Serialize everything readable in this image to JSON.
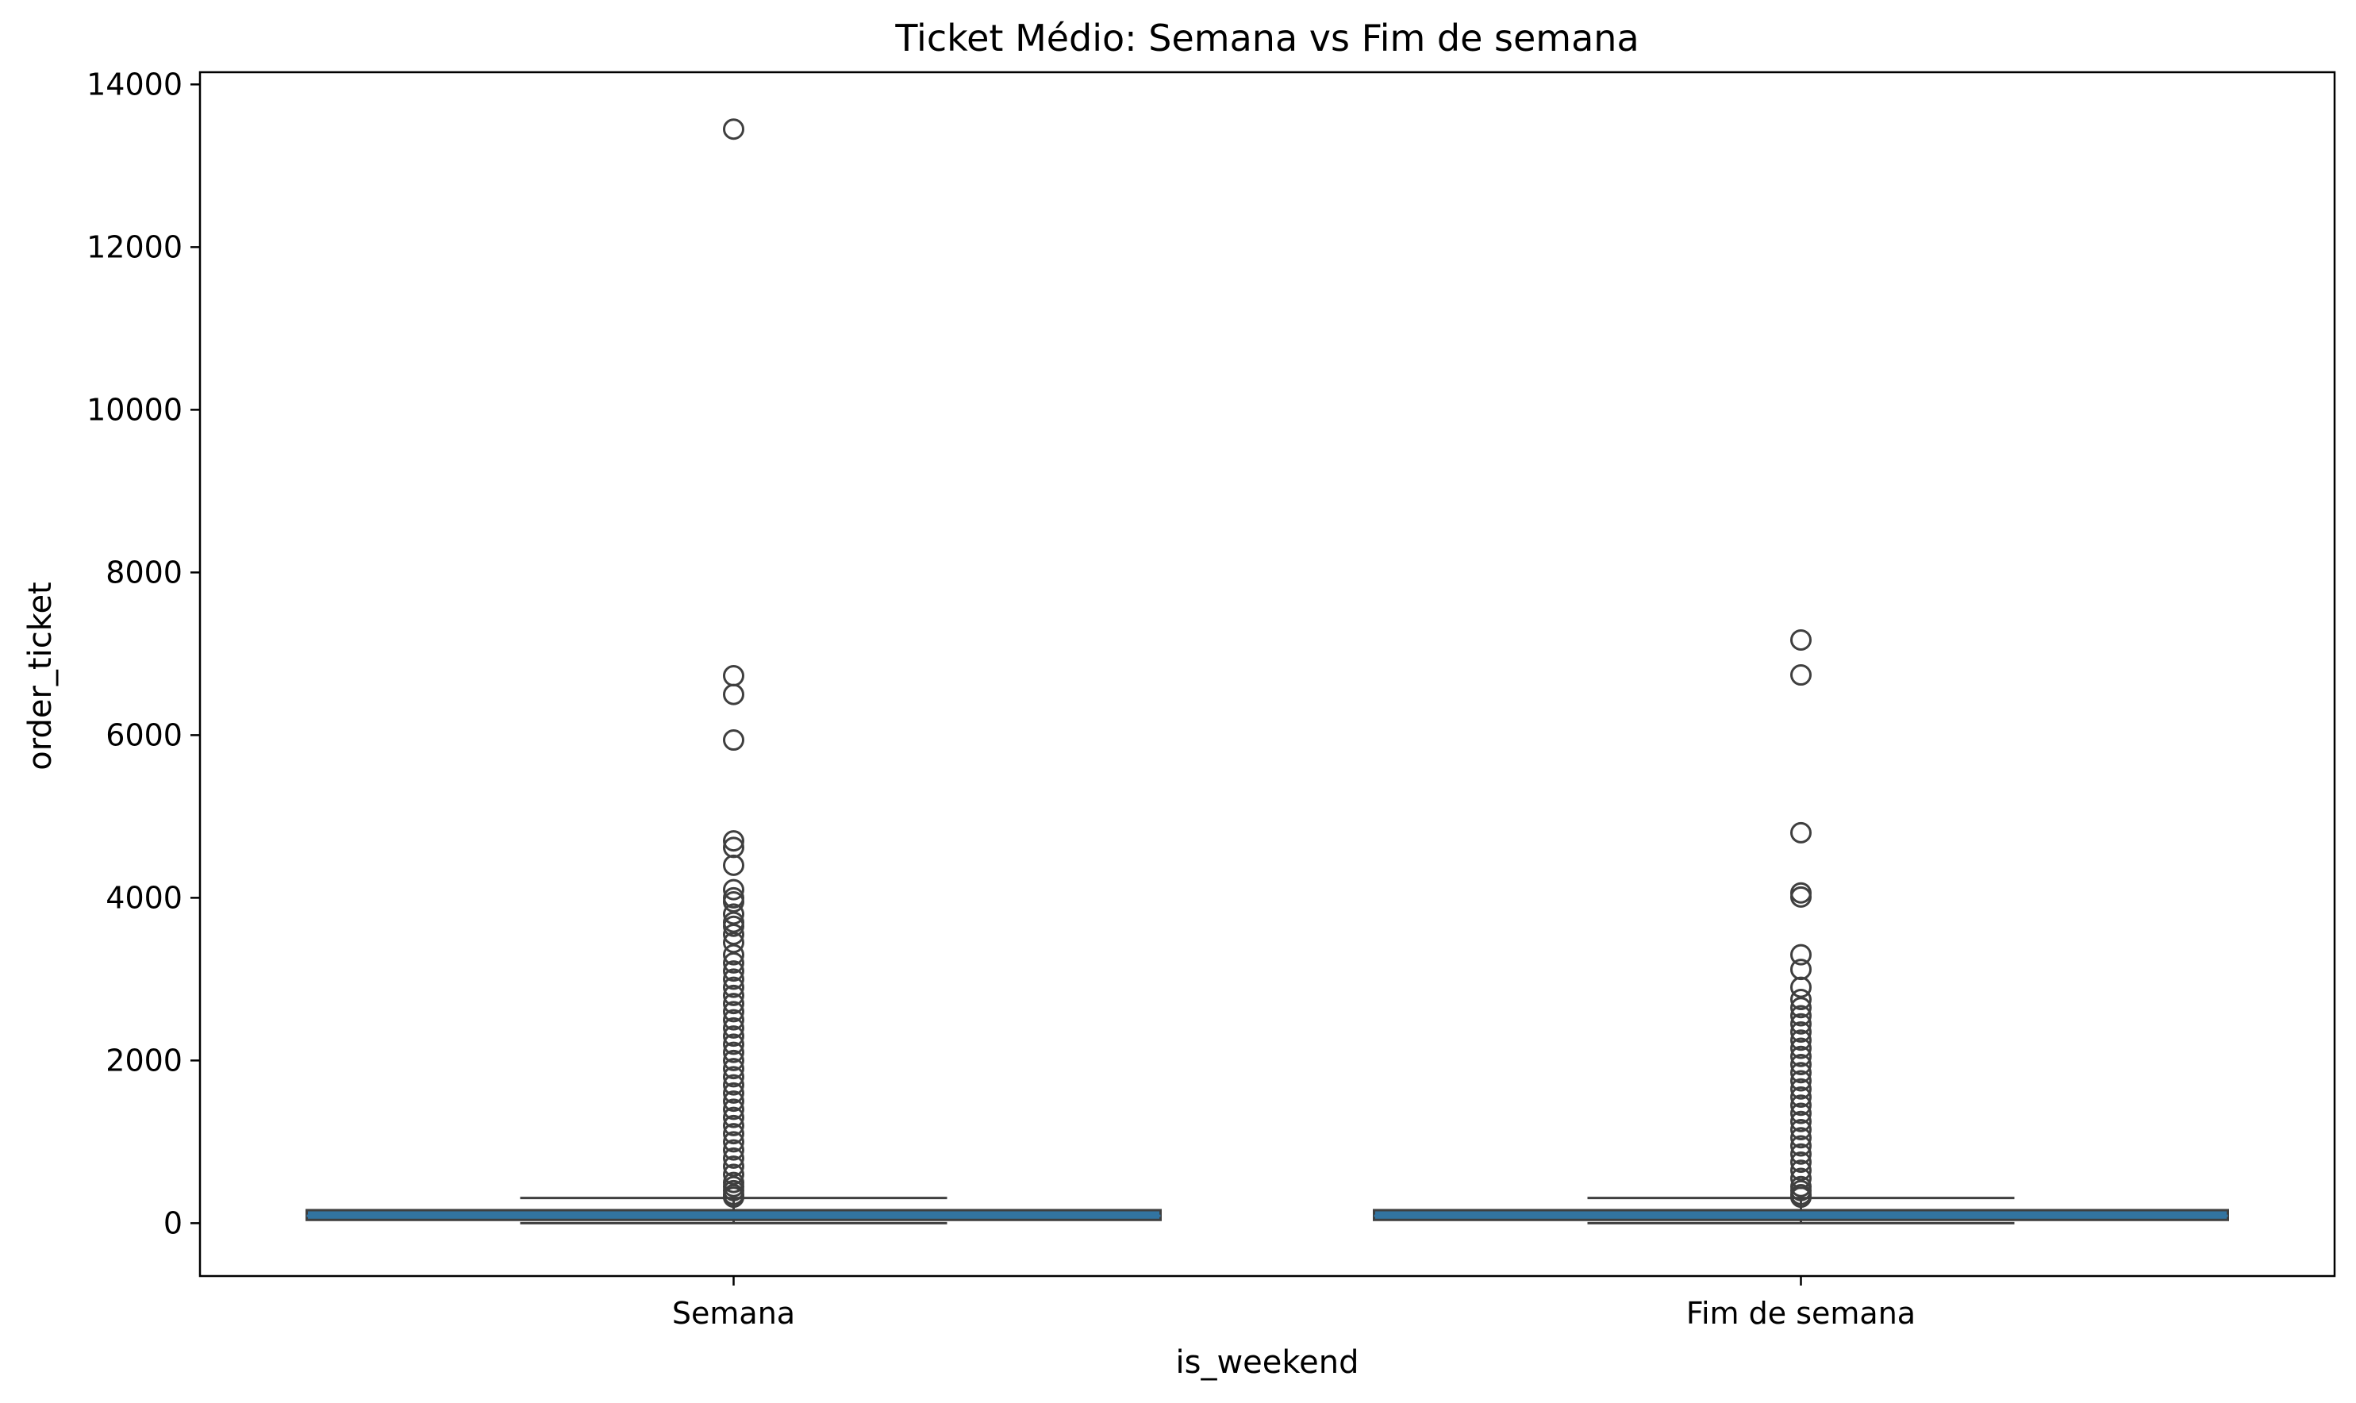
{
  "chart_data": {
    "type": "box",
    "title": "Ticket Médio: Semana vs Fim de semana",
    "xlabel": "is_weekend",
    "ylabel": "order_ticket",
    "ylim": [
      -650,
      14150
    ],
    "yticks": [
      0,
      2000,
      4000,
      6000,
      8000,
      10000,
      12000,
      14000
    ],
    "grid": false,
    "legend": "none",
    "colors": {
      "box_fill": "#3274a1",
      "box_edge": "#3f3f3f",
      "median": "#3274a1"
    },
    "categories": [
      "Semana",
      "Fim de semana"
    ],
    "boxes": [
      {
        "name": "Semana",
        "whisker_low": 0,
        "q1": 40,
        "median": 90,
        "q3": 160,
        "whisker_high": 310,
        "outliers": [
          13450,
          6730,
          6500,
          5940,
          4700,
          4620,
          4400,
          4100,
          4000,
          3950,
          3800,
          3700,
          3650,
          3550,
          3450,
          3300,
          3200,
          3100,
          3000,
          2900,
          2800,
          2700,
          2600,
          2500,
          2400,
          2300,
          2200,
          2100,
          2000,
          1900,
          1800,
          1700,
          1600,
          1500,
          1400,
          1300,
          1200,
          1100,
          1000,
          900,
          800,
          700,
          600,
          500,
          450,
          400,
          350,
          320
        ]
      },
      {
        "name": "Fim de semana",
        "whisker_low": 0,
        "q1": 40,
        "median": 90,
        "q3": 160,
        "whisker_high": 310,
        "outliers": [
          7170,
          6740,
          4800,
          4060,
          4010,
          3300,
          3120,
          2900,
          2750,
          2650,
          2550,
          2450,
          2350,
          2250,
          2150,
          2050,
          1950,
          1850,
          1750,
          1650,
          1550,
          1450,
          1350,
          1250,
          1150,
          1050,
          950,
          850,
          750,
          650,
          550,
          450,
          400,
          350,
          320
        ]
      }
    ]
  }
}
